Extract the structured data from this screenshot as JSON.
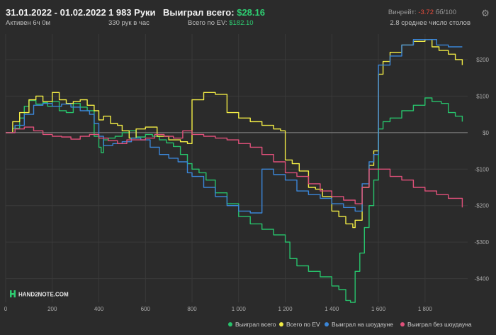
{
  "header": {
    "date_range": "31.01.2022 - 01.02.2022",
    "active_time": "Активен 6ч 0м",
    "hands": "1 983 Руки",
    "hands_per_hour": "330 рук в час",
    "won_total_label": "Выиграл всего:",
    "won_total_value": "$28.16",
    "ev_label": "Всего по EV:",
    "ev_value": "$182.10",
    "winrate_label": "Винрейт:",
    "winrate_value": "-3.72",
    "winrate_unit": "бб/100",
    "tables_avg": "2.8 среднее число столов"
  },
  "logo": {
    "text": "HAND2NOTE.COM"
  },
  "colors": {
    "background": "#2b2b2b",
    "grid": "#3a3a3a",
    "zero": "#8a8a8a",
    "won": "#27c26b",
    "ev": "#f2ec45",
    "showdown": "#3b86d8",
    "non_showdown": "#e0507a"
  },
  "chart_data": {
    "type": "line",
    "xlabel": "",
    "ylabel": "",
    "xlim": [
      0,
      1983
    ],
    "ylim": [
      -465,
      270
    ],
    "x_ticks": [
      0,
      200,
      400,
      600,
      800,
      1000,
      1200,
      1400,
      1600,
      1800
    ],
    "x_tick_labels": [
      "0",
      "200",
      "400",
      "600",
      "800",
      "1 000",
      "1 200",
      "1 400",
      "1 600",
      "1 800"
    ],
    "y_ticks": [
      200,
      100,
      0,
      -100,
      -200,
      -300,
      -400
    ],
    "y_tick_labels": [
      "$200",
      "$100",
      "$0",
      "-$100",
      "-$200",
      "-$300",
      "-$400"
    ],
    "y_axis_position": "right",
    "grid": true,
    "legend_position": "bottom-right",
    "series": [
      {
        "name": "Выиграл всего",
        "color": "#27c26b",
        "x": [
          0,
          30,
          60,
          80,
          100,
          130,
          160,
          180,
          200,
          230,
          260,
          290,
          320,
          350,
          380,
          400,
          410,
          420,
          440,
          470,
          500,
          530,
          560,
          600,
          630,
          660,
          690,
          720,
          750,
          780,
          800,
          830,
          860,
          900,
          950,
          1000,
          1050,
          1100,
          1150,
          1200,
          1220,
          1250,
          1300,
          1350,
          1400,
          1430,
          1460,
          1480,
          1500,
          1520,
          1540,
          1560,
          1580,
          1600,
          1620,
          1650,
          1700,
          1750,
          1800,
          1830,
          1870,
          1900,
          1930,
          1960
        ],
        "values": [
          0,
          12,
          40,
          72,
          88,
          78,
          82,
          72,
          85,
          60,
          55,
          80,
          70,
          60,
          -10,
          -40,
          -55,
          -20,
          -15,
          -10,
          0,
          5,
          -12,
          -5,
          -10,
          -20,
          -28,
          -38,
          -60,
          -85,
          -100,
          -110,
          -130,
          -165,
          -195,
          -230,
          -250,
          -265,
          -280,
          -300,
          -345,
          -365,
          -380,
          -395,
          -420,
          -430,
          -460,
          -465,
          -380,
          -330,
          -260,
          -200,
          -130,
          10,
          30,
          40,
          60,
          75,
          95,
          85,
          80,
          55,
          45,
          30
        ]
      },
      {
        "name": "Всего по EV",
        "color": "#f2ec45",
        "x": [
          0,
          30,
          60,
          100,
          130,
          160,
          200,
          230,
          260,
          290,
          320,
          350,
          380,
          400,
          420,
          450,
          480,
          500,
          530,
          560,
          600,
          650,
          700,
          750,
          780,
          800,
          850,
          900,
          950,
          1000,
          1050,
          1100,
          1150,
          1180,
          1200,
          1230,
          1260,
          1300,
          1330,
          1360,
          1400,
          1430,
          1460,
          1490,
          1500,
          1530,
          1560,
          1580,
          1600,
          1620,
          1650,
          1700,
          1750,
          1800,
          1830,
          1860,
          1900,
          1930,
          1960
        ],
        "values": [
          0,
          30,
          55,
          90,
          100,
          85,
          110,
          90,
          80,
          85,
          90,
          75,
          60,
          35,
          45,
          25,
          20,
          5,
          -15,
          10,
          15,
          -10,
          -20,
          -25,
          -30,
          90,
          110,
          105,
          55,
          40,
          30,
          20,
          10,
          5,
          -75,
          -85,
          -105,
          -150,
          -155,
          -175,
          -215,
          -230,
          -250,
          -260,
          -240,
          -150,
          -90,
          -50,
          160,
          195,
          220,
          240,
          250,
          255,
          235,
          225,
          215,
          200,
          185
        ]
      },
      {
        "name": "Выиграл на шоудауне",
        "color": "#3b86d8",
        "x": [
          0,
          40,
          80,
          120,
          160,
          200,
          240,
          280,
          320,
          360,
          380,
          400,
          420,
          460,
          500,
          540,
          580,
          620,
          660,
          700,
          740,
          780,
          800,
          850,
          900,
          950,
          1000,
          1050,
          1100,
          1150,
          1200,
          1250,
          1300,
          1350,
          1400,
          1450,
          1500,
          1530,
          1560,
          1580,
          1600,
          1650,
          1700,
          1750,
          1800,
          1850,
          1900,
          1960
        ],
        "values": [
          0,
          20,
          50,
          75,
          80,
          72,
          78,
          70,
          60,
          50,
          25,
          -10,
          -35,
          -30,
          -25,
          -15,
          -20,
          -40,
          -60,
          -70,
          -80,
          -110,
          -120,
          -150,
          -175,
          -200,
          -215,
          -220,
          -100,
          -115,
          -130,
          -160,
          -170,
          -180,
          -195,
          -205,
          -215,
          -140,
          -80,
          -60,
          185,
          210,
          240,
          255,
          255,
          240,
          235,
          235
        ]
      },
      {
        "name": "Выиграл без шоудауна",
        "color": "#e0507a",
        "x": [
          0,
          40,
          80,
          120,
          160,
          200,
          240,
          280,
          320,
          360,
          400,
          440,
          480,
          520,
          560,
          600,
          640,
          680,
          720,
          760,
          800,
          850,
          900,
          950,
          1000,
          1050,
          1100,
          1150,
          1200,
          1250,
          1300,
          1350,
          1400,
          1450,
          1500,
          1530,
          1560,
          1600,
          1650,
          1700,
          1750,
          1800,
          1850,
          1900,
          1960
        ],
        "values": [
          0,
          10,
          15,
          5,
          -5,
          -10,
          -12,
          -18,
          -10,
          -5,
          -15,
          -22,
          -30,
          -20,
          -20,
          -15,
          -5,
          -10,
          -15,
          5,
          -5,
          -10,
          -15,
          -20,
          -30,
          -40,
          -60,
          -80,
          -110,
          -120,
          -140,
          -160,
          -175,
          -185,
          -195,
          -150,
          -100,
          -100,
          -120,
          -130,
          -150,
          -160,
          -170,
          -180,
          -205
        ]
      }
    ]
  },
  "legend": {
    "items": [
      {
        "label": "Выиграл всего",
        "color": "#27c26b"
      },
      {
        "label": "Всего по EV",
        "color": "#f2ec45"
      },
      {
        "label": "Выиграл на шоудауне",
        "color": "#3b86d8"
      },
      {
        "label": "Выиграл без шоудауна",
        "color": "#e0507a"
      }
    ]
  },
  "controls": {
    "settings_icon": "gear-icon"
  }
}
